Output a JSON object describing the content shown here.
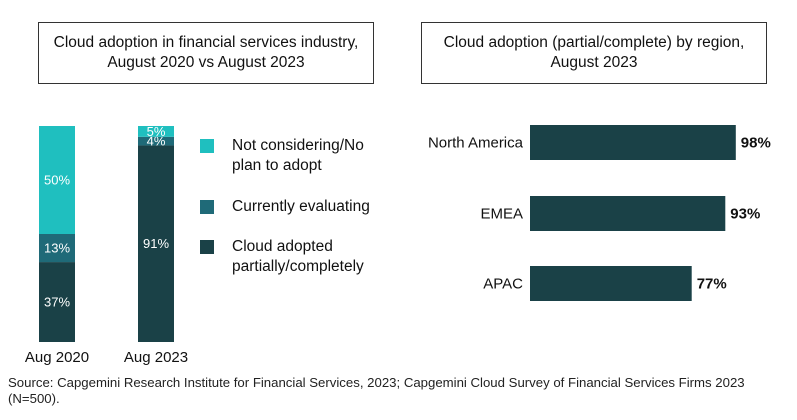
{
  "colors": {
    "not_considering": "#1fbfbf",
    "evaluating": "#1f6a78",
    "adopted": "#1a4147"
  },
  "left_title": "Cloud adoption in financial services industry, August 2020 vs August 2023",
  "right_title": "Cloud adoption (partial/complete) by region, August 2023",
  "legend": [
    {
      "key": "not_considering",
      "label": "Not considering/No plan to adopt"
    },
    {
      "key": "evaluating",
      "label": "Currently evaluating"
    },
    {
      "key": "adopted",
      "label": "Cloud adopted partially/completely"
    }
  ],
  "source": "Source: Capgemini Research Institute for Financial Services, 2023; Capgemini Cloud Survey of Financial Services Firms 2023 (N=500).",
  "chart_data": [
    {
      "type": "bar",
      "stacked": true,
      "categories": [
        "Aug 2020",
        "Aug 2023"
      ],
      "series": [
        {
          "name": "Cloud adopted partially/completely",
          "key": "adopted",
          "values": [
            37,
            91
          ],
          "labels": [
            "37%",
            "91%"
          ]
        },
        {
          "name": "Currently evaluating",
          "key": "evaluating",
          "values": [
            13,
            4
          ],
          "labels": [
            "13%",
            "4%"
          ]
        },
        {
          "name": "Not considering/No plan to adopt",
          "key": "not_considering",
          "values": [
            50,
            5
          ],
          "labels": [
            "50%",
            "5%"
          ]
        }
      ],
      "title": "Cloud adoption in financial services industry, August 2020 vs August 2023",
      "ylim": [
        0,
        100
      ],
      "legend": "right"
    },
    {
      "type": "bar",
      "orientation": "horizontal",
      "categories": [
        "North America",
        "EMEA",
        "APAC"
      ],
      "values": [
        98,
        93,
        77
      ],
      "labels": [
        "98%",
        "93%",
        "77%"
      ],
      "title": "Cloud adoption (partial/complete) by region, August 2023",
      "xlim": [
        0,
        100
      ]
    }
  ]
}
